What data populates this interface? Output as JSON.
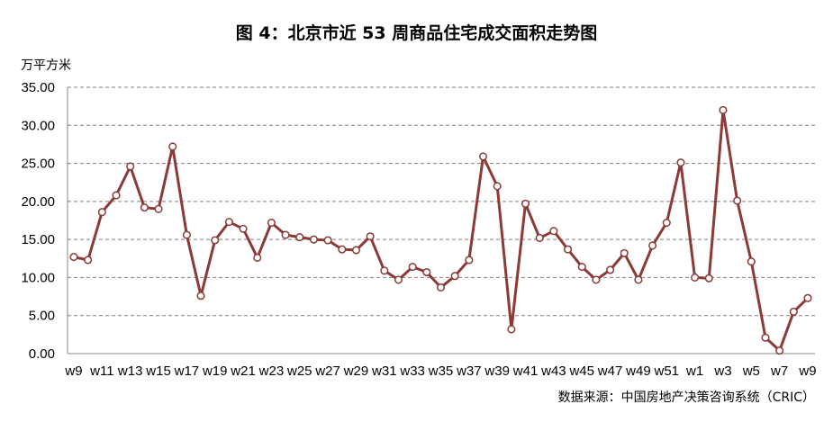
{
  "chart_data": {
    "type": "line",
    "title": "图 4：北京市近 53 周商品住宅成交面积走势图",
    "ylabel": "万平方米",
    "xlabel": "",
    "source": "数据来源：中国房地产决策咨询系统（CRIC）",
    "ylim": [
      0,
      35
    ],
    "yticks": [
      "0.00",
      "5.00",
      "10.00",
      "15.00",
      "20.00",
      "25.00",
      "30.00",
      "35.00"
    ],
    "categories": [
      "w9",
      "w10",
      "w11",
      "w12",
      "w13",
      "w14",
      "w15",
      "w16",
      "w17",
      "w18",
      "w19",
      "w20",
      "w21",
      "w22",
      "w23",
      "w24",
      "w25",
      "w26",
      "w27",
      "w28",
      "w29",
      "w30",
      "w31",
      "w32",
      "w33",
      "w34",
      "w35",
      "w36",
      "w37",
      "w38",
      "w39",
      "w40",
      "w41",
      "w42",
      "w43",
      "w44",
      "w45",
      "w46",
      "w47",
      "w48",
      "w49",
      "w50",
      "w51",
      "w52",
      "w1",
      "w2",
      "w3",
      "w4",
      "w5",
      "w6",
      "w7",
      "w8",
      "w9"
    ],
    "shown_tick_labels": [
      "w9",
      "",
      "w11",
      "",
      "w13",
      "",
      "w15",
      "",
      "w17",
      "",
      "w19",
      "",
      "w21",
      "",
      "w23",
      "",
      "w25",
      "",
      "w27",
      "",
      "w29",
      "",
      "w31",
      "",
      "w33",
      "",
      "w35",
      "",
      "w37",
      "",
      "w39",
      "",
      "w41",
      "",
      "w43",
      "",
      "w45",
      "",
      "w47",
      "",
      "w49",
      "",
      "w51",
      "",
      "w1",
      "",
      "w3",
      "",
      "w5",
      "",
      "w7",
      "",
      "w9"
    ],
    "values": [
      12.7,
      12.3,
      18.6,
      20.8,
      24.6,
      19.2,
      19.0,
      27.2,
      15.6,
      7.6,
      14.9,
      17.3,
      16.4,
      12.6,
      17.2,
      15.6,
      15.3,
      15.0,
      14.9,
      13.7,
      13.6,
      15.4,
      10.9,
      9.7,
      11.4,
      10.7,
      8.7,
      10.2,
      12.3,
      25.9,
      22.0,
      3.2,
      19.7,
      15.2,
      16.1,
      13.7,
      11.4,
      9.7,
      11.0,
      13.2,
      9.7,
      14.2,
      17.2,
      25.1,
      10.0,
      9.9,
      32.0,
      20.1,
      12.1,
      2.1,
      0.4,
      5.5,
      7.3
    ],
    "line_color": "#8B3A36",
    "marker_fill": "#ffffff",
    "grid": true
  }
}
